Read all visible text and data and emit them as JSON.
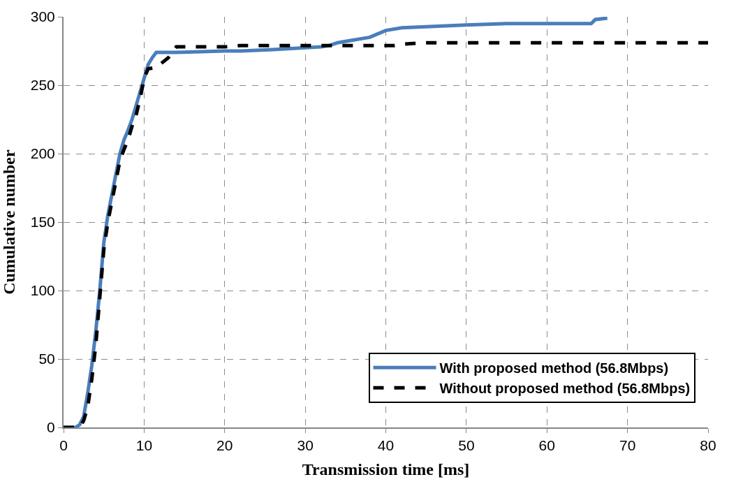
{
  "chart_data": {
    "type": "line",
    "xlabel": "Transmission time [ms]",
    "ylabel": "Cumulative number",
    "xlim": [
      0,
      80
    ],
    "xticks": [
      0,
      10,
      20,
      30,
      40,
      50,
      60,
      70,
      80
    ],
    "ylim": [
      0,
      300
    ],
    "yticks": [
      0,
      50,
      100,
      150,
      200,
      250,
      300
    ],
    "grid": true,
    "legend": "bottom right",
    "marker": "none",
    "series": [
      {
        "name": "With proposed method (56.8Mbps)",
        "color": "#4a7ebb",
        "line_style": "solid",
        "x": [
          0,
          1.5,
          2,
          2.5,
          3,
          3.5,
          4,
          4.5,
          5,
          5.5,
          6,
          6.5,
          7,
          7.5,
          8,
          8.5,
          9,
          10,
          10.5,
          11,
          11.5,
          14,
          20,
          22,
          26,
          32,
          33,
          34,
          36,
          38,
          40,
          42,
          46,
          50,
          55,
          60,
          65.5,
          66,
          67.5
        ],
        "values": [
          0,
          0,
          2,
          8,
          25,
          45,
          70,
          100,
          135,
          155,
          170,
          185,
          200,
          210,
          217,
          225,
          235,
          255,
          265,
          270,
          274,
          274,
          275,
          275,
          276,
          278,
          279,
          281,
          283,
          285,
          290,
          292,
          293,
          294,
          295,
          295,
          295,
          298,
          299
        ]
      },
      {
        "name": "Without proposed method (56.8Mbps)",
        "color": "#000000",
        "line_style": "dashed",
        "x": [
          0,
          2,
          2.5,
          3,
          3.5,
          4,
          4.5,
          5,
          5.5,
          6,
          6.5,
          7,
          7.5,
          8,
          8.5,
          9,
          9.5,
          10,
          10.5,
          11.5,
          13,
          14,
          20,
          22,
          33,
          41,
          42,
          45,
          80
        ],
        "values": [
          0,
          0,
          5,
          15,
          35,
          60,
          95,
          130,
          150,
          165,
          180,
          195,
          203,
          210,
          220,
          228,
          240,
          255,
          262,
          263,
          270,
          278,
          278,
          279,
          279,
          279,
          280,
          281,
          281
        ]
      }
    ]
  }
}
